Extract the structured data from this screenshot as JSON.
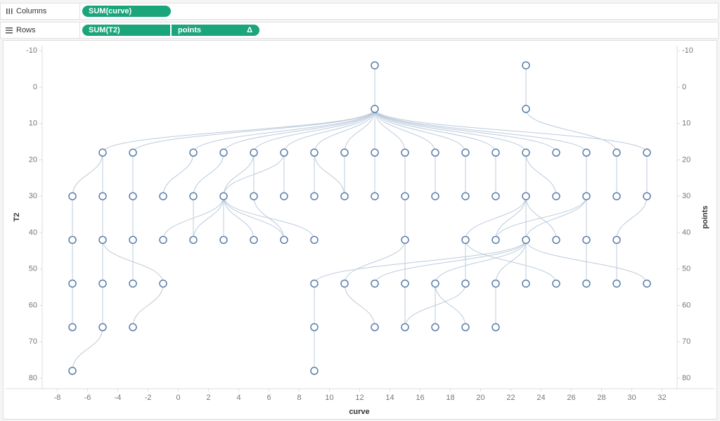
{
  "shelves": {
    "columns": {
      "label": "Columns",
      "pills": [
        "SUM(curve)"
      ]
    },
    "rows": {
      "label": "Rows",
      "pills": [
        "SUM(T2)",
        "points"
      ],
      "pill_icon": "Δ"
    }
  },
  "chart_data": {
    "type": "tree",
    "x_label": "curve",
    "y_label": "T2",
    "y2_label": "points",
    "color": "#5a7da8",
    "link_color": "#bccbdc",
    "xlim": [
      -9,
      33
    ],
    "xticks": [
      -8,
      -6,
      -4,
      -2,
      0,
      2,
      4,
      6,
      8,
      10,
      12,
      14,
      16,
      18,
      20,
      22,
      24,
      26,
      28,
      30,
      32
    ],
    "ylim": [
      -11.4,
      82.9
    ],
    "yticks": [
      -10,
      0,
      10,
      20,
      30,
      40,
      50,
      60,
      70,
      80
    ],
    "y2lim": [
      -11.4,
      82.9
    ],
    "y2ticks": [
      -10,
      0,
      10,
      20,
      30,
      40,
      50,
      60,
      70,
      80
    ],
    "x": [
      13,
      23,
      13,
      23,
      -5,
      -3,
      1,
      3,
      5,
      7,
      9,
      11,
      13,
      15,
      17,
      19,
      21,
      23,
      25,
      27,
      29,
      31,
      -7,
      -5,
      -3,
      -1,
      1,
      3,
      5,
      7,
      9,
      11,
      13,
      15,
      17,
      19,
      21,
      23,
      25,
      27,
      29,
      31,
      -7,
      -5,
      -3,
      -1,
      1,
      3,
      5,
      7,
      9,
      15,
      19,
      21,
      23,
      25,
      27,
      29,
      -7,
      -5,
      -3,
      -1,
      9,
      11,
      13,
      15,
      17,
      19,
      21,
      23,
      25,
      27,
      29,
      31,
      -7,
      -5,
      -3,
      9,
      13,
      15,
      17,
      19,
      21,
      -7,
      9
    ],
    "values": [
      -6,
      -6,
      6,
      6,
      18,
      18,
      18,
      18,
      18,
      18,
      18,
      18,
      18,
      18,
      18,
      18,
      18,
      18,
      18,
      18,
      18,
      18,
      30,
      30,
      30,
      30,
      30,
      30,
      30,
      30,
      30,
      30,
      30,
      30,
      30,
      30,
      30,
      30,
      30,
      30,
      30,
      30,
      42,
      42,
      42,
      42,
      42,
      42,
      42,
      42,
      42,
      42,
      42,
      42,
      42,
      42,
      42,
      42,
      54,
      54,
      54,
      54,
      54,
      54,
      54,
      54,
      54,
      54,
      54,
      54,
      54,
      54,
      54,
      54,
      66,
      66,
      66,
      66,
      66,
      66,
      66,
      66,
      66,
      78,
      78
    ],
    "links": [
      {
        "x": [
          13,
          13
        ],
        "y": [
          -6,
          6
        ]
      },
      {
        "x": [
          23,
          23
        ],
        "y": [
          -6,
          6
        ]
      },
      {
        "x": [
          13,
          -5
        ],
        "y": [
          6,
          18
        ]
      },
      {
        "x": [
          13,
          -3
        ],
        "y": [
          6,
          18
        ]
      },
      {
        "x": [
          13,
          1
        ],
        "y": [
          6,
          18
        ]
      },
      {
        "x": [
          13,
          3
        ],
        "y": [
          6,
          18
        ]
      },
      {
        "x": [
          13,
          5
        ],
        "y": [
          6,
          18
        ]
      },
      {
        "x": [
          13,
          7
        ],
        "y": [
          6,
          18
        ]
      },
      {
        "x": [
          13,
          9
        ],
        "y": [
          6,
          18
        ]
      },
      {
        "x": [
          13,
          11
        ],
        "y": [
          6,
          18
        ]
      },
      {
        "x": [
          13,
          13
        ],
        "y": [
          6,
          18
        ]
      },
      {
        "x": [
          13,
          15
        ],
        "y": [
          6,
          18
        ]
      },
      {
        "x": [
          13,
          17
        ],
        "y": [
          6,
          18
        ]
      },
      {
        "x": [
          13,
          19
        ],
        "y": [
          6,
          18
        ]
      },
      {
        "x": [
          13,
          21
        ],
        "y": [
          6,
          18
        ]
      },
      {
        "x": [
          13,
          23
        ],
        "y": [
          6,
          18
        ]
      },
      {
        "x": [
          13,
          25
        ],
        "y": [
          6,
          18
        ]
      },
      {
        "x": [
          13,
          27
        ],
        "y": [
          6,
          18
        ]
      },
      {
        "x": [
          13,
          31
        ],
        "y": [
          6,
          18
        ]
      },
      {
        "x": [
          23,
          29
        ],
        "y": [
          6,
          18
        ]
      },
      {
        "x": [
          -5,
          -7
        ],
        "y": [
          18,
          30
        ]
      },
      {
        "x": [
          -5,
          -5
        ],
        "y": [
          18,
          30
        ]
      },
      {
        "x": [
          -3,
          -3
        ],
        "y": [
          18,
          30
        ]
      },
      {
        "x": [
          1,
          -1
        ],
        "y": [
          18,
          30
        ]
      },
      {
        "x": [
          3,
          1
        ],
        "y": [
          18,
          30
        ]
      },
      {
        "x": [
          5,
          3
        ],
        "y": [
          18,
          30
        ]
      },
      {
        "x": [
          7,
          3
        ],
        "y": [
          18,
          30
        ]
      },
      {
        "x": [
          5,
          5
        ],
        "y": [
          18,
          30
        ]
      },
      {
        "x": [
          7,
          7
        ],
        "y": [
          18,
          30
        ]
      },
      {
        "x": [
          9,
          9
        ],
        "y": [
          18,
          30
        ]
      },
      {
        "x": [
          9,
          11
        ],
        "y": [
          18,
          30
        ]
      },
      {
        "x": [
          11,
          11
        ],
        "y": [
          18,
          30
        ]
      },
      {
        "x": [
          13,
          13
        ],
        "y": [
          18,
          30
        ]
      },
      {
        "x": [
          15,
          15
        ],
        "y": [
          18,
          30
        ]
      },
      {
        "x": [
          17,
          17
        ],
        "y": [
          18,
          30
        ]
      },
      {
        "x": [
          19,
          19
        ],
        "y": [
          18,
          30
        ]
      },
      {
        "x": [
          21,
          21
        ],
        "y": [
          18,
          30
        ]
      },
      {
        "x": [
          23,
          23
        ],
        "y": [
          18,
          30
        ]
      },
      {
        "x": [
          23,
          25
        ],
        "y": [
          18,
          30
        ]
      },
      {
        "x": [
          27,
          27
        ],
        "y": [
          18,
          30
        ]
      },
      {
        "x": [
          29,
          29
        ],
        "y": [
          18,
          30
        ]
      },
      {
        "x": [
          31,
          31
        ],
        "y": [
          18,
          30
        ]
      },
      {
        "x": [
          -7,
          -7
        ],
        "y": [
          30,
          42
        ]
      },
      {
        "x": [
          -5,
          -5
        ],
        "y": [
          30,
          42
        ]
      },
      {
        "x": [
          -3,
          -3
        ],
        "y": [
          30,
          42
        ]
      },
      {
        "x": [
          3,
          -1
        ],
        "y": [
          30,
          42
        ]
      },
      {
        "x": [
          1,
          1
        ],
        "y": [
          30,
          42
        ]
      },
      {
        "x": [
          3,
          1
        ],
        "y": [
          30,
          42
        ]
      },
      {
        "x": [
          3,
          3
        ],
        "y": [
          30,
          42
        ]
      },
      {
        "x": [
          3,
          5
        ],
        "y": [
          30,
          42
        ]
      },
      {
        "x": [
          3,
          7
        ],
        "y": [
          30,
          42
        ]
      },
      {
        "x": [
          5,
          7
        ],
        "y": [
          30,
          42
        ]
      },
      {
        "x": [
          3,
          9
        ],
        "y": [
          30,
          42
        ]
      },
      {
        "x": [
          15,
          15
        ],
        "y": [
          30,
          42
        ]
      },
      {
        "x": [
          23,
          19
        ],
        "y": [
          30,
          42
        ]
      },
      {
        "x": [
          27,
          21
        ],
        "y": [
          30,
          42
        ]
      },
      {
        "x": [
          23,
          21
        ],
        "y": [
          30,
          42
        ]
      },
      {
        "x": [
          23,
          23
        ],
        "y": [
          30,
          42
        ]
      },
      {
        "x": [
          27,
          23
        ],
        "y": [
          30,
          42
        ]
      },
      {
        "x": [
          23,
          25
        ],
        "y": [
          30,
          42
        ]
      },
      {
        "x": [
          27,
          27
        ],
        "y": [
          30,
          42
        ]
      },
      {
        "x": [
          31,
          29
        ],
        "y": [
          30,
          42
        ]
      },
      {
        "x": [
          -7,
          -7
        ],
        "y": [
          42,
          54
        ]
      },
      {
        "x": [
          -5,
          -5
        ],
        "y": [
          42,
          54
        ]
      },
      {
        "x": [
          -3,
          -3
        ],
        "y": [
          42,
          54
        ]
      },
      {
        "x": [
          -5,
          -1
        ],
        "y": [
          42,
          54
        ]
      },
      {
        "x": [
          23,
          9
        ],
        "y": [
          42,
          54
        ]
      },
      {
        "x": [
          15,
          11
        ],
        "y": [
          42,
          54
        ]
      },
      {
        "x": [
          23,
          13
        ],
        "y": [
          42,
          54
        ]
      },
      {
        "x": [
          15,
          15
        ],
        "y": [
          42,
          54
        ]
      },
      {
        "x": [
          23,
          17
        ],
        "y": [
          42,
          54
        ]
      },
      {
        "x": [
          19,
          19
        ],
        "y": [
          42,
          54
        ]
      },
      {
        "x": [
          23,
          21
        ],
        "y": [
          42,
          54
        ]
      },
      {
        "x": [
          23,
          23
        ],
        "y": [
          42,
          54
        ]
      },
      {
        "x": [
          19,
          25
        ],
        "y": [
          42,
          54
        ]
      },
      {
        "x": [
          27,
          27
        ],
        "y": [
          42,
          54
        ]
      },
      {
        "x": [
          29,
          29
        ],
        "y": [
          42,
          54
        ]
      },
      {
        "x": [
          23,
          31
        ],
        "y": [
          42,
          54
        ]
      },
      {
        "x": [
          -7,
          -7
        ],
        "y": [
          54,
          66
        ]
      },
      {
        "x": [
          -5,
          -5
        ],
        "y": [
          54,
          66
        ]
      },
      {
        "x": [
          -1,
          -3
        ],
        "y": [
          54,
          66
        ]
      },
      {
        "x": [
          9,
          9
        ],
        "y": [
          54,
          66
        ]
      },
      {
        "x": [
          11,
          13
        ],
        "y": [
          54,
          66
        ]
      },
      {
        "x": [
          15,
          15
        ],
        "y": [
          54,
          66
        ]
      },
      {
        "x": [
          19,
          15
        ],
        "y": [
          54,
          66
        ]
      },
      {
        "x": [
          17,
          17
        ],
        "y": [
          54,
          66
        ]
      },
      {
        "x": [
          17,
          19
        ],
        "y": [
          54,
          66
        ]
      },
      {
        "x": [
          21,
          21
        ],
        "y": [
          54,
          66
        ]
      },
      {
        "x": [
          -5,
          -7
        ],
        "y": [
          66,
          78
        ]
      },
      {
        "x": [
          9,
          9
        ],
        "y": [
          66,
          78
        ]
      }
    ]
  }
}
